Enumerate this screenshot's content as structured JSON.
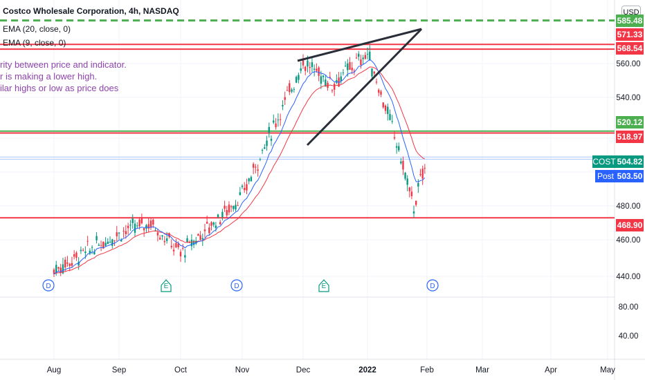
{
  "legend": {
    "title": "Costco Wholesale Corporation, 4h, NASDAQ",
    "ema20": "EMA (20, close, 0)",
    "ema9": "EMA (9, close, 0)"
  },
  "note": {
    "line1": "rity between price and indicator.",
    "line2": "r is making a lower high.",
    "line3": "ilar highs or low as price does"
  },
  "currency_button": "USD",
  "price_tags": [
    {
      "label": "585.48",
      "color": "#4caf50"
    },
    {
      "label": "571.33",
      "color": "#f23645"
    },
    {
      "label": "568.54",
      "color": "#f23645"
    },
    {
      "label": "520.12",
      "color": "#4caf50"
    },
    {
      "label": "518.97",
      "color": "#f23645"
    },
    {
      "label": "504.82",
      "color": "#089981"
    },
    {
      "label": "503.50",
      "color": "#2962ff"
    },
    {
      "label": "468.90",
      "color": "#f23645"
    }
  ],
  "symbol_tag": {
    "label": "COST",
    "color": "#089981"
  },
  "post_tag": {
    "label": "Post",
    "color": "#2962ff"
  },
  "chart_data": {
    "type": "candlestick",
    "y_axis_ticks": [
      "560.00",
      "540.00",
      "480.00",
      "460.00",
      "440.00",
      "80.00",
      "40.00"
    ],
    "x_axis_ticks": [
      "Aug",
      "Sep",
      "Oct",
      "Nov",
      "Dec",
      "2022",
      "Feb",
      "Mar",
      "Apr",
      "May"
    ],
    "horizontal_levels": [
      {
        "price": 585.48,
        "style": "dashed",
        "color": "#4caf50"
      },
      {
        "price": 571.33,
        "style": "solid",
        "color": "#f23645"
      },
      {
        "price": 568.54,
        "style": "solid",
        "color": "#f23645"
      },
      {
        "price": 520.12,
        "style": "solid",
        "color": "#4caf50"
      },
      {
        "price": 518.97,
        "style": "solid",
        "color": "#f23645"
      },
      {
        "price": 468.9,
        "style": "solid",
        "color": "#f23645"
      }
    ],
    "event_markers": [
      {
        "label": "D",
        "month": "Jul"
      },
      {
        "label": "E",
        "month": "Sep"
      },
      {
        "label": "D",
        "month": "Oct"
      },
      {
        "label": "E",
        "month": "Dec"
      },
      {
        "label": "D",
        "month": "Jan"
      }
    ],
    "price_path": [
      {
        "date": "Aug",
        "close": 438
      },
      {
        "date": "Sep",
        "close": 460
      },
      {
        "date": "Sep-mid",
        "close": 466
      },
      {
        "date": "Oct",
        "close": 448
      },
      {
        "date": "Nov",
        "close": 482
      },
      {
        "date": "Nov-mid",
        "close": 520
      },
      {
        "date": "Dec",
        "close": 561
      },
      {
        "date": "Dec-mid",
        "close": 548
      },
      {
        "date": "2022",
        "close": 566
      },
      {
        "date": "Jan-mid",
        "close": 518
      },
      {
        "date": "Jan-late",
        "close": 475
      },
      {
        "date": "Feb",
        "close": 504.82
      }
    ],
    "ema20_color": "#f23645",
    "ema9_color": "#2962ff"
  }
}
